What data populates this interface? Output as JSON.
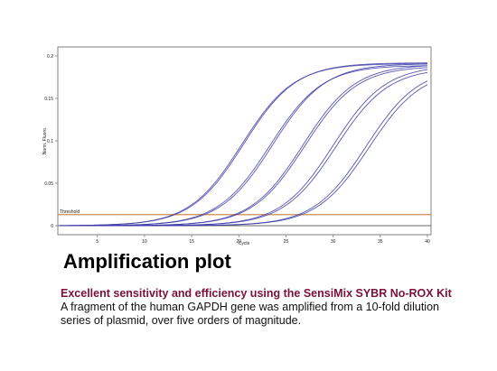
{
  "chart_data": {
    "type": "line",
    "xlabel": "Cycle",
    "ylabel": "Norm. Fluoro.",
    "xlim": [
      1,
      40
    ],
    "ylim": [
      0,
      0.2
    ],
    "x_ticks": [
      5,
      10,
      15,
      20,
      25,
      30,
      35,
      40
    ],
    "x_tick_labels": [
      "5",
      "10",
      "15",
      "20",
      "25",
      "30",
      "35",
      "40"
    ],
    "y_ticks": [
      0,
      0.05,
      0.1,
      0.15,
      0.2
    ],
    "y_tick_labels": [
      "0",
      "0.05",
      "0.1",
      "0.15",
      "0.2"
    ],
    "threshold": {
      "label": "Threshold",
      "value": 0.013,
      "color": "#d08a4e"
    },
    "baseline_color": "#666666",
    "curve_color": "#3b3ba6",
    "grid": false,
    "series": [
      {
        "ct": 19.5,
        "midpoint": 20.5,
        "plateau": 0.192
      },
      {
        "ct": 19.3,
        "midpoint": 20.3,
        "plateau": 0.191
      },
      {
        "ct": 22.5,
        "midpoint": 23.6,
        "plateau": 0.191
      },
      {
        "ct": 22.3,
        "midpoint": 23.3,
        "plateau": 0.189
      },
      {
        "ct": 25.6,
        "midpoint": 26.8,
        "plateau": 0.19
      },
      {
        "ct": 25.8,
        "midpoint": 27.0,
        "plateau": 0.188
      },
      {
        "ct": 28.7,
        "midpoint": 30.0,
        "plateau": 0.189
      },
      {
        "ct": 28.9,
        "midpoint": 30.3,
        "plateau": 0.186
      },
      {
        "ct": 32.0,
        "midpoint": 33.5,
        "plateau": 0.187
      },
      {
        "ct": 32.3,
        "midpoint": 33.8,
        "plateau": 0.184
      }
    ]
  },
  "caption": {
    "title": "Amplification plot",
    "subtitle": "Excellent sensitivity and efficiency using the SensiMix SYBR No-ROX Kit",
    "description": "A fragment of the human GAPDH gene was amplified from a 10-fold dilution series of plasmid, over five orders of magnitude."
  }
}
